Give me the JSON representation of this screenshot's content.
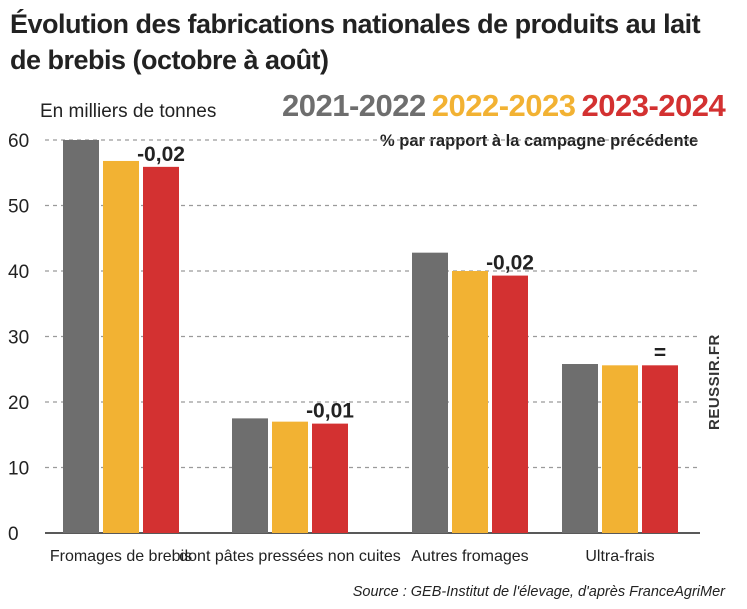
{
  "chart_data": {
    "type": "bar",
    "title": [
      "Évolution des fabrications nationales de produits au lait",
      "de brebis (octobre à août)"
    ],
    "ylabel": "En milliers de tonnes",
    "subtitle": "% par rapport à la campagne précédente",
    "categories": [
      "Fromages de brebis",
      "dont pâtes pressées non cuites",
      "Autres fromages",
      "Ultra-frais"
    ],
    "series": [
      {
        "name": "2021-2022",
        "color": "#6e6e6e",
        "values": [
          60.0,
          17.5,
          42.8,
          25.8
        ]
      },
      {
        "name": "2022-2023",
        "color": "#f2b233",
        "values": [
          56.8,
          17.0,
          40.0,
          25.6
        ]
      },
      {
        "name": "2023-2024",
        "color": "#d33131",
        "values": [
          55.9,
          16.7,
          39.3,
          25.6
        ]
      }
    ],
    "annotations": [
      "-0,02",
      "-0,01",
      "-0,02",
      "="
    ],
    "ylim": [
      0,
      60
    ],
    "yticks": [
      0,
      10,
      20,
      30,
      40,
      50,
      60
    ],
    "grid": true,
    "legend_position": "top-right",
    "side_note": "REUSSIR.FR",
    "source": "Source : GEB-Institut de l'élevage, d'après FranceAgriMer"
  }
}
